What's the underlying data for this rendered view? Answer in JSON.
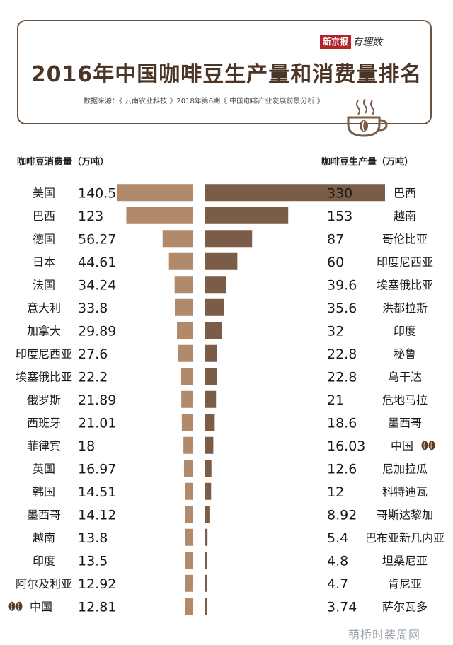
{
  "header": {
    "brand_badge": "新京报",
    "brand_script": "有理数",
    "title": "2016年中国咖啡豆生产量和消费量排名",
    "source": "数据来源：《 云南农业科技 》2018年第6期《 中国咖啡产业发展前景分析 》"
  },
  "watermark": "萌桥时装周网",
  "chart_data": [
    {
      "type": "bar",
      "orientation": "horizontal",
      "xlabel": "咖啡豆消费量（万吨）",
      "categories": [
        "美国",
        "巴西",
        "德国",
        "日本",
        "法国",
        "意大利",
        "加拿大",
        "印度尼西亚",
        "埃塞俄比亚",
        "俄罗斯",
        "西班牙",
        "菲律宾",
        "英国",
        "韩国",
        "墨西哥",
        "越南",
        "印度",
        "阿尔及利亚",
        "中国"
      ],
      "value_labels": [
        "140.5",
        "123",
        "56.27",
        "44.61",
        "34.24",
        "33.8",
        "29.89",
        "27.6",
        "22.2",
        "21.89",
        "21.01",
        "18",
        "16.97",
        "14.51",
        "14.12",
        "13.8",
        "13.5",
        "12.92",
        "12.81"
      ],
      "values": [
        140.5,
        123,
        56.27,
        44.61,
        34.24,
        33.8,
        29.89,
        27.6,
        22.2,
        21.89,
        21.01,
        18,
        16.97,
        14.51,
        14.12,
        13.8,
        13.5,
        12.92,
        12.81
      ],
      "color": "#b08a6a",
      "highlight": "中国"
    },
    {
      "type": "bar",
      "orientation": "horizontal",
      "xlabel": "咖啡豆生产量（万吨）",
      "categories": [
        "巴西",
        "越南",
        "哥伦比亚",
        "印度尼西亚",
        "埃塞俄比亚",
        "洪都拉斯",
        "印度",
        "秘鲁",
        "乌干达",
        "危地马拉",
        "墨西哥",
        "中国",
        "尼加拉瓜",
        "科特迪瓦",
        "哥斯达黎加",
        "巴布亚新几内亚",
        "坦桑尼亚",
        "肯尼亚",
        "萨尔瓦多"
      ],
      "value_labels": [
        "330",
        "153",
        "87",
        "60",
        "39.6",
        "35.6",
        "32",
        "22.8",
        "22.8",
        "21",
        "18.6",
        "16.03",
        "12.6",
        "12",
        "8.92",
        "5.4",
        "4.8",
        "4.7",
        "3.74"
      ],
      "values": [
        330,
        153,
        87,
        60,
        39.6,
        35.6,
        32,
        22.8,
        22.8,
        21,
        18.6,
        16.03,
        12.6,
        12,
        8.92,
        5.4,
        4.8,
        4.7,
        3.74
      ],
      "color": "#7a5c47",
      "highlight": "中国"
    }
  ]
}
